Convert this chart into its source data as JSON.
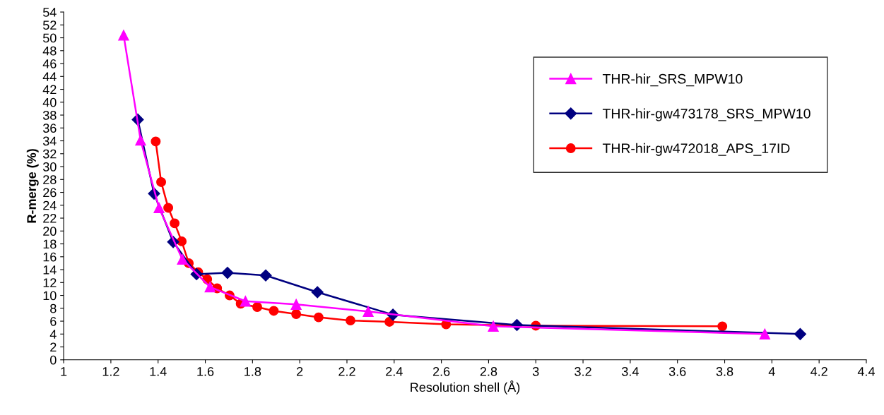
{
  "chart_data": {
    "type": "line",
    "xlabel": "Resolution shell (Å)",
    "ylabel": "R-merge (%)",
    "xlim": [
      1,
      4.4
    ],
    "xticks": [
      1,
      1.2,
      1.4,
      1.6,
      1.8,
      2,
      2.2,
      2.4,
      2.6,
      2.8,
      3,
      3.2,
      3.4,
      3.6,
      3.8,
      4,
      4.2,
      4.4
    ],
    "ylim": [
      0,
      54
    ],
    "yticks": [
      0,
      2,
      4,
      6,
      8,
      10,
      12,
      14,
      16,
      18,
      20,
      22,
      24,
      26,
      28,
      30,
      32,
      34,
      36,
      38,
      40,
      42,
      44,
      46,
      48,
      50,
      52,
      54
    ],
    "grid": false,
    "legend": "top right",
    "series": [
      {
        "name": "THR-hir_SRS_MPW10",
        "color": "#ff00ff",
        "marker": "triangle",
        "x": [
          1.254,
          1.326,
          1.404,
          1.503,
          1.62,
          1.77,
          1.985,
          2.29,
          2.82,
          3.97
        ],
        "values": [
          50.4,
          34.1,
          23.6,
          15.6,
          11.3,
          9.1,
          8.6,
          7.5,
          5.2,
          4.0
        ]
      },
      {
        "name": "THR-hir-gw473178_SRS_MPW10",
        "color": "#000080",
        "marker": "diamond",
        "x": [
          1.314,
          1.383,
          1.464,
          1.563,
          1.694,
          1.856,
          2.075,
          2.395,
          2.92,
          4.12
        ],
        "values": [
          37.3,
          25.8,
          18.3,
          13.3,
          13.5,
          13.1,
          10.5,
          7.0,
          5.4,
          4.0
        ]
      },
      {
        "name": "THR-hir-gw472018_APS_17ID",
        "color": "#ff0000",
        "marker": "circle",
        "x": [
          1.39,
          1.413,
          1.443,
          1.47,
          1.5,
          1.53,
          1.57,
          1.608,
          1.65,
          1.703,
          1.75,
          1.82,
          1.89,
          1.985,
          2.08,
          2.215,
          2.38,
          2.62,
          3.0,
          3.79
        ],
        "values": [
          33.9,
          27.6,
          23.6,
          21.2,
          18.4,
          15.0,
          13.6,
          12.5,
          11.1,
          10.0,
          8.7,
          8.2,
          7.6,
          7.1,
          6.6,
          6.1,
          5.9,
          5.5,
          5.3,
          5.2
        ]
      }
    ]
  }
}
